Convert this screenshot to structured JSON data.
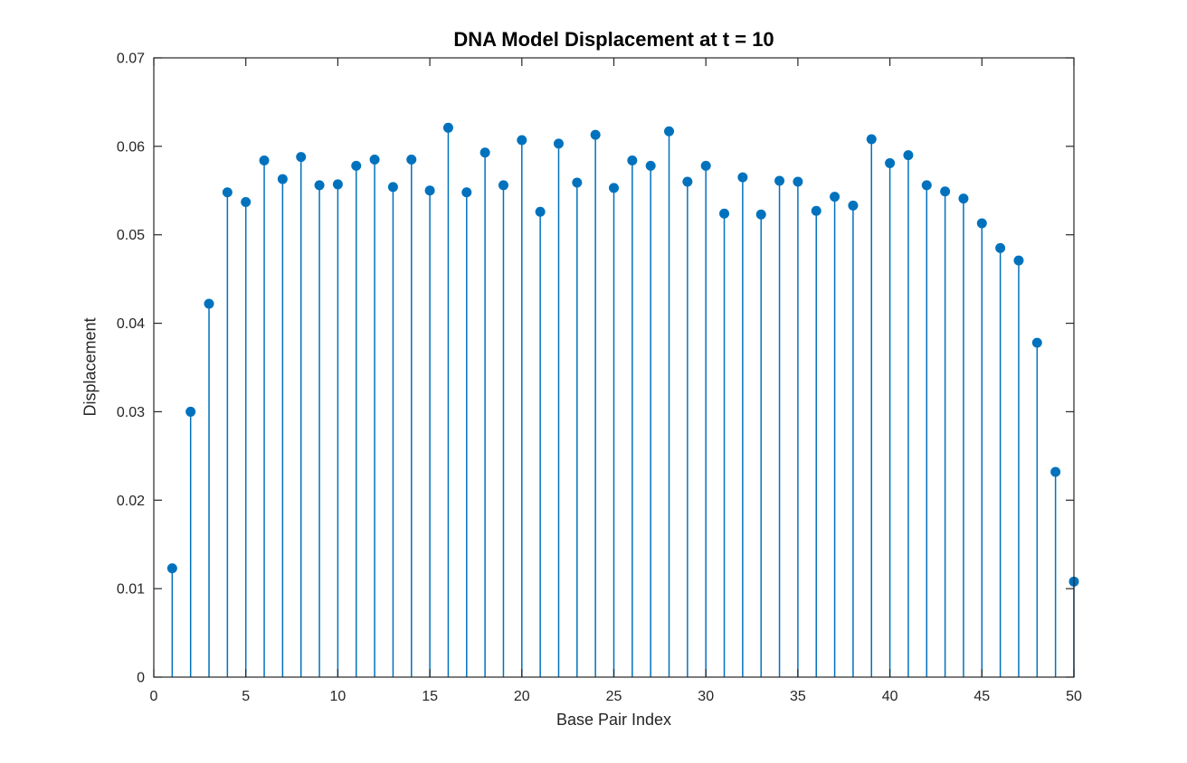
{
  "chart_data": {
    "type": "stem",
    "title": "DNA Model Displacement at t = 10",
    "xlabel": "Base Pair Index",
    "ylabel": "Displacement",
    "x": [
      1,
      2,
      3,
      4,
      5,
      6,
      7,
      8,
      9,
      10,
      11,
      12,
      13,
      14,
      15,
      16,
      17,
      18,
      19,
      20,
      21,
      22,
      23,
      24,
      25,
      26,
      27,
      28,
      29,
      30,
      31,
      32,
      33,
      34,
      35,
      36,
      37,
      38,
      39,
      40,
      41,
      42,
      43,
      44,
      45,
      46,
      47,
      48,
      49,
      50
    ],
    "values": [
      0.0123,
      0.03,
      0.0422,
      0.0548,
      0.0537,
      0.0584,
      0.0563,
      0.0588,
      0.0556,
      0.0557,
      0.0578,
      0.0585,
      0.0554,
      0.0585,
      0.055,
      0.0621,
      0.0548,
      0.0593,
      0.0556,
      0.0607,
      0.0526,
      0.0603,
      0.0559,
      0.0613,
      0.0553,
      0.0584,
      0.0578,
      0.0617,
      0.056,
      0.0578,
      0.0524,
      0.0565,
      0.0523,
      0.0561,
      0.056,
      0.0527,
      0.0543,
      0.0533,
      0.0608,
      0.0581,
      0.059,
      0.0556,
      0.0549,
      0.0541,
      0.0513,
      0.0485,
      0.0471,
      0.0378,
      0.0232,
      0.0108
    ],
    "xlim": [
      0,
      50
    ],
    "ylim": [
      0,
      0.07
    ],
    "x_ticks": [
      0,
      5,
      10,
      15,
      20,
      25,
      30,
      35,
      40,
      45,
      50
    ],
    "x_tick_labels": [
      "0",
      "5",
      "10",
      "15",
      "20",
      "25",
      "30",
      "35",
      "40",
      "45",
      "50"
    ],
    "y_ticks": [
      0,
      0.01,
      0.02,
      0.03,
      0.04,
      0.05,
      0.06,
      0.07
    ],
    "y_tick_labels": [
      "0",
      "0.01",
      "0.02",
      "0.03",
      "0.04",
      "0.05",
      "0.06",
      "0.07"
    ],
    "grid": false,
    "legend": null,
    "box": true,
    "tick_direction": "in",
    "marker": "filled-circle",
    "colors": {
      "stem": "#0072BD",
      "marker": "#0072BD",
      "axis": "#262626",
      "tick_label": "#262626",
      "title": "#000000",
      "background": "#ffffff"
    }
  }
}
